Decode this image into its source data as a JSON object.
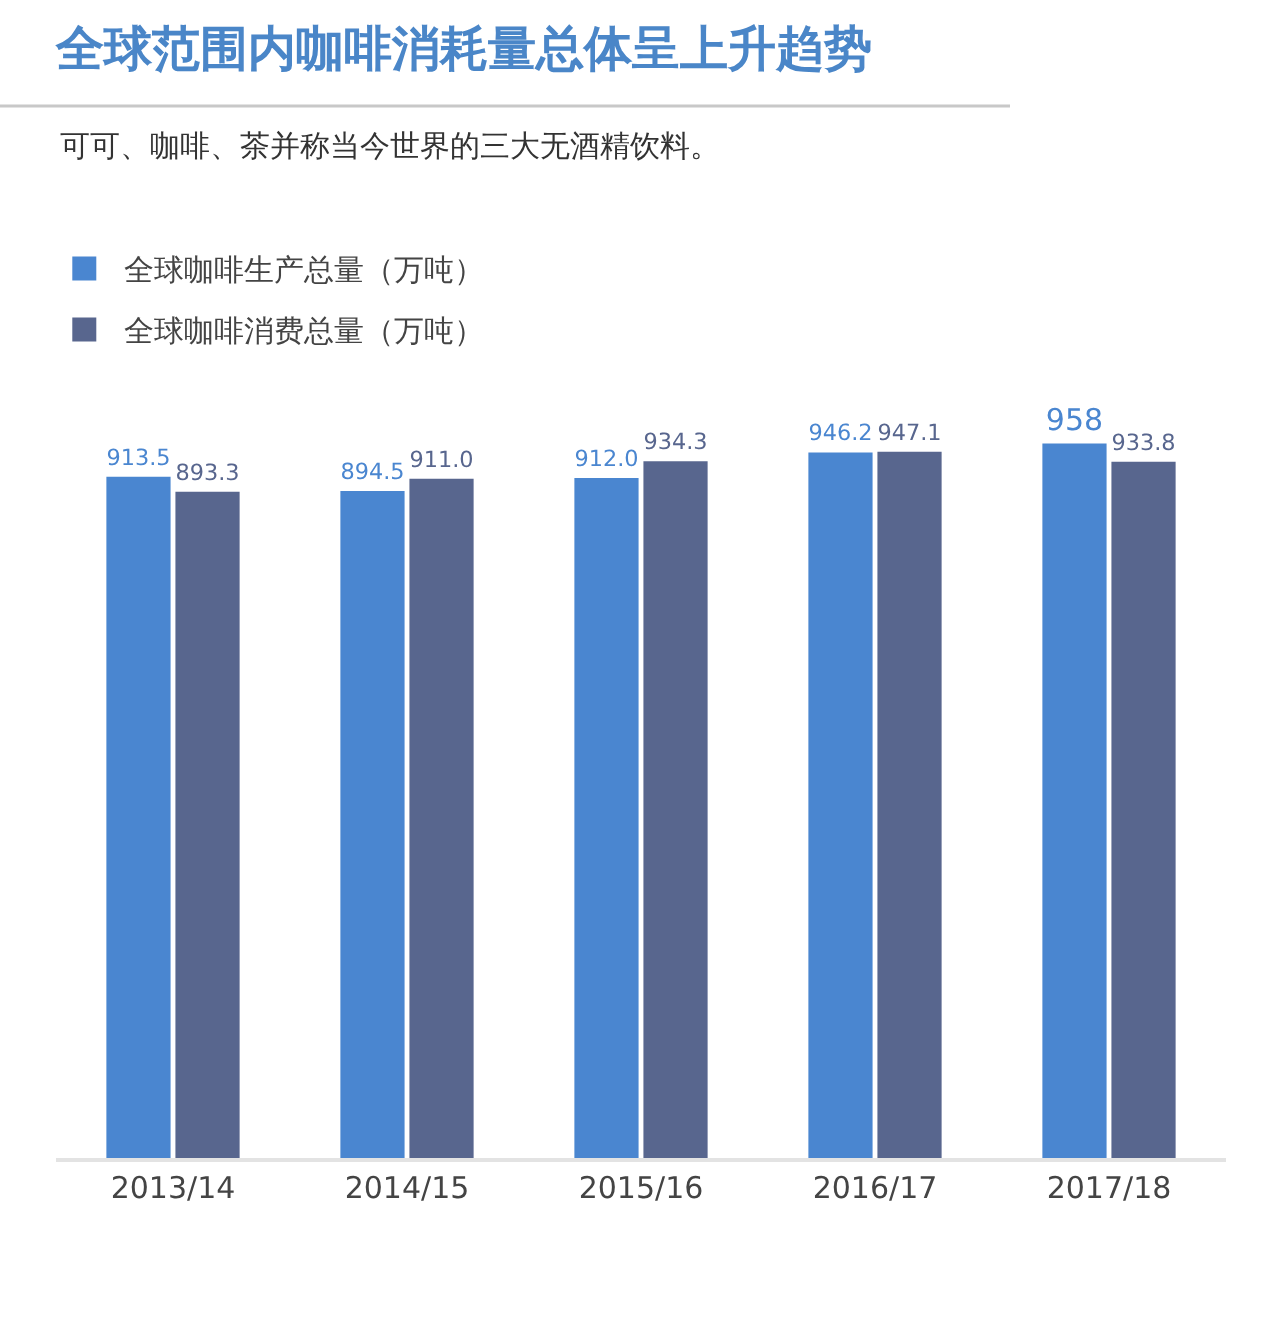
{
  "chart_data": {
    "type": "bar",
    "title": "全球范围内咖啡消耗量总体呈上升趋势",
    "subtitle": "可可、咖啡、茶并称当今世界的三大无酒精饮料。",
    "categories": [
      "2013/14",
      "2014/15",
      "2015/16",
      "2016/17",
      "2017/18"
    ],
    "series": [
      {
        "name": "全球咖啡生产总量（万吨）",
        "color": "#4a86d0",
        "values": [
          913.5,
          894.5,
          912.0,
          946.2,
          958
        ],
        "value_labels": [
          "913.5",
          "894.5",
          "912.0",
          "946.2",
          "958"
        ]
      },
      {
        "name": "全球咖啡消费总量（万吨）",
        "color": "#58668e",
        "values": [
          893.3,
          911.0,
          934.3,
          947.1,
          933.8
        ],
        "value_labels": [
          "893.3",
          "911.0",
          "934.3",
          "947.1",
          "933.8"
        ]
      }
    ],
    "tick_labels": "x",
    "legend": "top left"
  }
}
